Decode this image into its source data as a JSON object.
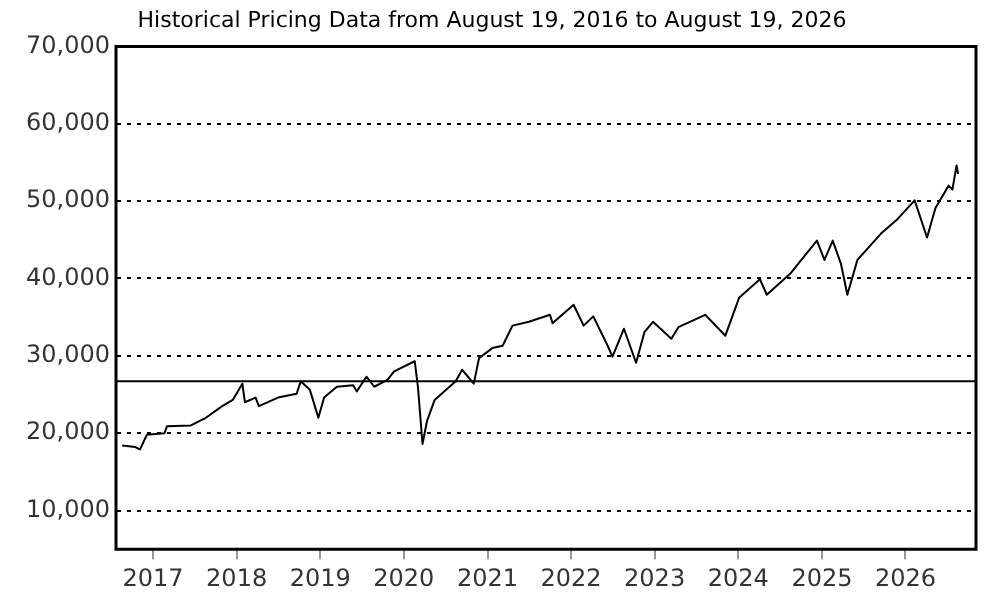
{
  "chart_data": {
    "type": "line",
    "title": "Historical Pricing Data from August 19, 2016 to August 19, 2026",
    "x": [
      "2016-08-19",
      "2016-10-15",
      "2016-11-05",
      "2016-12-05",
      "2017-02-20",
      "2017-03-03",
      "2017-06-15",
      "2017-08-15",
      "2017-10-30",
      "2017-12-15",
      "2018-01-26",
      "2018-02-06",
      "2018-03-25",
      "2018-04-08",
      "2018-07-01",
      "2018-09-20",
      "2018-10-08",
      "2018-11-17",
      "2018-12-24",
      "2019-01-18",
      "2019-03-15",
      "2019-05-25",
      "2019-06-10",
      "2019-07-22",
      "2019-08-25",
      "2019-10-22",
      "2019-11-20",
      "2020-02-18",
      "2020-03-03",
      "2020-03-23",
      "2020-04-12",
      "2020-05-15",
      "2020-08-15",
      "2020-09-12",
      "2020-11-02",
      "2020-11-25",
      "2021-01-22",
      "2021-03-08",
      "2021-04-20",
      "2021-07-01",
      "2021-10-01",
      "2021-10-12",
      "2022-01-12",
      "2022-02-25",
      "2022-04-08",
      "2022-06-10",
      "2022-07-01",
      "2022-08-20",
      "2022-10-12",
      "2022-11-18",
      "2022-12-25",
      "2023-03-15",
      "2023-04-15",
      "2023-08-10",
      "2023-11-06",
      "2024-01-05",
      "2024-04-05",
      "2024-05-05",
      "2024-08-15",
      "2024-12-10",
      "2025-01-12",
      "2025-02-17",
      "2025-03-25",
      "2025-04-22",
      "2025-06-05",
      "2025-09-16",
      "2025-11-28",
      "2026-02-10",
      "2026-04-05",
      "2026-05-12",
      "2026-07-08",
      "2026-07-25",
      "2026-08-12",
      "2026-08-19"
    ],
    "series": [
      {
        "color": "#000000",
        "values": [
          18400,
          18200,
          17900,
          19800,
          20000,
          20900,
          21000,
          21900,
          23500,
          24300,
          26400,
          24000,
          24600,
          23500,
          24600,
          25100,
          26700,
          25600,
          22000,
          24600,
          26000,
          26200,
          25400,
          27300,
          26000,
          26900,
          28000,
          29300,
          26000,
          18600,
          21600,
          24300,
          26700,
          28200,
          26400,
          29700,
          31000,
          31300,
          33900,
          34400,
          35300,
          34200,
          36600,
          33900,
          35100,
          31300,
          29900,
          33500,
          29100,
          33100,
          34400,
          32200,
          33700,
          35300,
          32600,
          37500,
          39900,
          37900,
          40600,
          44900,
          42400,
          44900,
          41900,
          37900,
          42400,
          45800,
          47700,
          50100,
          45300,
          49100,
          52000,
          51500,
          54600,
          53500
        ]
      }
    ],
    "xlim": [
      "2016-07-23",
      "2026-11-05"
    ],
    "xticks": [
      {
        "value": "2017-01-01",
        "label": "2017"
      },
      {
        "value": "2018-01-01",
        "label": "2018"
      },
      {
        "value": "2019-01-01",
        "label": "2019"
      },
      {
        "value": "2020-01-01",
        "label": "2020"
      },
      {
        "value": "2021-01-01",
        "label": "2021"
      },
      {
        "value": "2022-01-01",
        "label": "2022"
      },
      {
        "value": "2023-01-01",
        "label": "2023"
      },
      {
        "value": "2024-01-01",
        "label": "2024"
      },
      {
        "value": "2025-01-01",
        "label": "2025"
      },
      {
        "value": "2026-01-01",
        "label": "2026"
      }
    ],
    "ylim": [
      5000,
      70000
    ],
    "yticks": [
      {
        "value": 10000,
        "label": "10,000"
      },
      {
        "value": 20000,
        "label": "20,000"
      },
      {
        "value": 30000,
        "label": "30,000"
      },
      {
        "value": 40000,
        "label": "40,000"
      },
      {
        "value": 50000,
        "label": "50,000"
      },
      {
        "value": 60000,
        "label": "60,000"
      },
      {
        "value": 70000,
        "label": "70,000"
      }
    ],
    "ref_lines": [
      {
        "axis": "y",
        "value": 26700,
        "color": "#000000",
        "line_style": "solid"
      }
    ],
    "grid": "y",
    "legend": false,
    "marker": "none",
    "line_style": "solid"
  }
}
